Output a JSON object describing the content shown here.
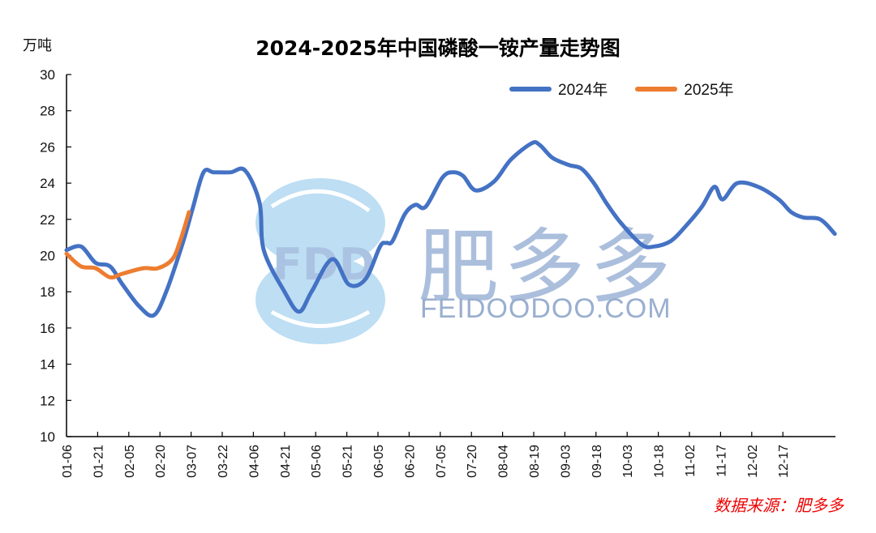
{
  "title": "2024-2025年中国磷酸一铵产量走势图",
  "unit_label": "万吨",
  "source": "数据来源：肥多多",
  "watermark": {
    "brand": "肥多多",
    "logo_text": "FDD",
    "url": "FEIDOODOO.COM"
  },
  "legend": [
    {
      "label": "2024年",
      "color": "#4472C4"
    },
    {
      "label": "2025年",
      "color": "#ED7D31"
    }
  ],
  "y_ticks": [
    "30",
    "28",
    "26",
    "24",
    "22",
    "20",
    "18",
    "16",
    "14",
    "12",
    "10"
  ],
  "x_ticks": [
    "01-06",
    "01-21",
    "02-05",
    "02-20",
    "03-07",
    "03-22",
    "04-06",
    "04-21",
    "05-06",
    "05-21",
    "06-05",
    "06-20",
    "07-05",
    "07-20",
    "08-04",
    "08-19",
    "09-03",
    "09-18",
    "10-03",
    "10-18",
    "11-02",
    "11-17",
    "12-02",
    "12-17"
  ],
  "chart_data": {
    "type": "line",
    "title": "2024-2025年中国磷酸一铵产量走势图",
    "xlabel": "",
    "ylabel": "万吨",
    "ylim": [
      10,
      30
    ],
    "y_step": 2,
    "grid": false,
    "legend_position": "top-right",
    "categories": [
      "01-06",
      "01-21",
      "02-05",
      "02-20",
      "03-07",
      "03-22",
      "04-06",
      "04-21",
      "05-06",
      "05-21",
      "06-05",
      "06-20",
      "07-05",
      "07-20",
      "08-04",
      "08-19",
      "09-03",
      "09-18",
      "10-03",
      "10-18",
      "11-02",
      "11-17",
      "12-02",
      "12-17"
    ],
    "series": [
      {
        "name": "2024年",
        "color": "#4472C4",
        "x_day_offset": [
          0,
          7,
          14,
          21,
          27,
          35,
          42,
          48,
          56,
          61,
          66,
          71,
          79,
          86,
          93,
          95,
          105,
          112,
          118,
          128,
          136,
          144,
          151,
          154,
          157,
          163,
          168,
          173,
          181,
          186,
          191,
          197,
          206,
          214,
          224,
          228,
          234,
          242,
          248,
          254,
          260,
          267,
          277,
          283,
          291,
          298,
          306,
          312,
          316,
          323,
          333,
          343,
          349,
          355,
          363,
          370
        ],
        "values": [
          20.3,
          20.5,
          19.6,
          19.4,
          18.4,
          17.2,
          16.7,
          18.0,
          20.7,
          22.7,
          24.6,
          24.6,
          24.6,
          24.7,
          22.9,
          20.3,
          18.0,
          16.9,
          18.0,
          19.8,
          18.4,
          18.7,
          20.5,
          20.7,
          20.8,
          22.3,
          22.8,
          22.7,
          24.3,
          24.6,
          24.4,
          23.6,
          24.1,
          25.3,
          26.2,
          26.1,
          25.4,
          25.0,
          24.8,
          24.0,
          22.9,
          21.8,
          20.6,
          20.5,
          20.8,
          21.6,
          22.7,
          23.8,
          23.1,
          24.0,
          23.8,
          23.1,
          22.4,
          22.1,
          22.0,
          21.2
        ]
      },
      {
        "name": "2025年",
        "color": "#ED7D31",
        "x_day_offset": [
          0,
          7,
          14,
          21,
          27,
          37,
          44,
          51,
          55,
          59
        ],
        "values": [
          20.1,
          19.4,
          19.3,
          18.8,
          19.0,
          19.3,
          19.3,
          19.8,
          20.9,
          22.4
        ]
      }
    ]
  }
}
